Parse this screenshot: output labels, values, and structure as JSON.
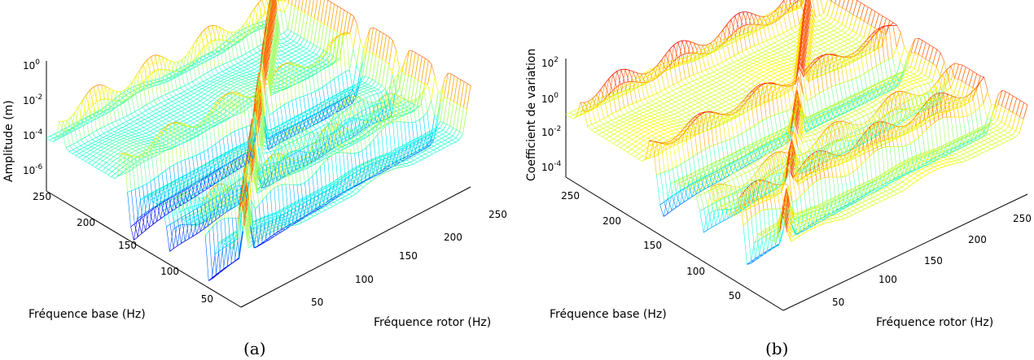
{
  "chart_data": [
    {
      "type": "surface",
      "caption": "(a)",
      "zlabel": "Amplitude (m)",
      "xlabel": "Fréquence rotor (Hz)",
      "ylabel": "Fréquence base (Hz)",
      "zscale": "log",
      "zticks": [
        "10^-6",
        "10^-4",
        "10^-2",
        "10^0"
      ],
      "zlim": [
        1e-06,
        1
      ],
      "xticks": [
        50,
        100,
        150,
        200,
        250
      ],
      "yticks": [
        50,
        100,
        150,
        200,
        250
      ],
      "xlim": [
        0,
        280
      ],
      "ylim": [
        0,
        280
      ],
      "colormap": "jet",
      "features": {
        "diagonal_resonance_ridge": {
          "along": "rotor = base",
          "z_log10": -0.5
        },
        "rotor_resonance_ridge": {
          "rotor_hz": 280,
          "z_log10": -1.2
        },
        "base_resonance_ridges_hz": [
          55,
          95,
          170,
          260
        ],
        "antiresonance_valleys_hz": [
          45,
          100,
          155
        ],
        "background_z_log10": -3.5
      }
    },
    {
      "type": "surface",
      "caption": "(b)",
      "zlabel": "Coefficient de variation",
      "xlabel": "Fréquence rotor (Hz)",
      "ylabel": "Fréquence base (Hz)",
      "zscale": "log",
      "zticks": [
        "10^-4",
        "10^-2",
        "10^0",
        "10^2"
      ],
      "zlim": [
        0.0001,
        100
      ],
      "xticks": [
        50,
        100,
        150,
        200,
        250
      ],
      "yticks": [
        50,
        100,
        150,
        200,
        250
      ],
      "xlim": [
        0,
        280
      ],
      "ylim": [
        0,
        280
      ],
      "colormap": "jet",
      "features": {
        "diagonal_resonance_ridge": {
          "along": "rotor = base",
          "z_log10": 1.3
        },
        "rotor_resonance_ridge": {
          "rotor_hz": 280,
          "z_log10": 1.0
        },
        "base_resonance_ridges_hz": [
          55,
          95,
          170,
          260
        ],
        "antiresonance_valleys_hz": [
          45,
          100,
          155
        ],
        "background_z_log10": -0.5
      }
    }
  ]
}
